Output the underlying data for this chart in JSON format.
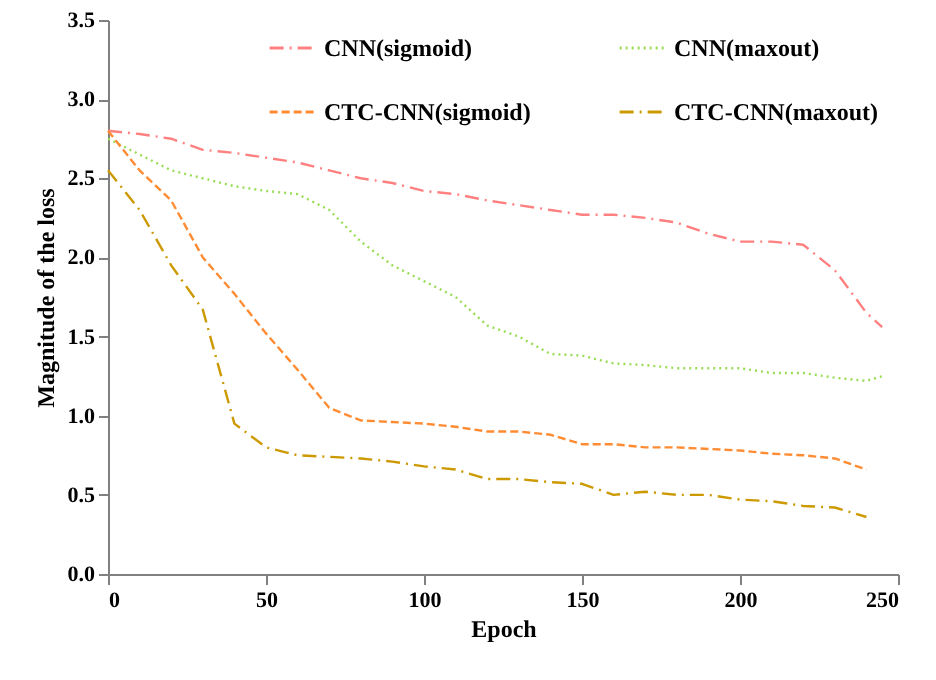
{
  "chart_data": {
    "type": "line",
    "xlabel": "Epoch",
    "ylabel": "Magnitude of the loss",
    "x": [
      0,
      10,
      20,
      30,
      40,
      50,
      60,
      70,
      80,
      90,
      100,
      110,
      120,
      130,
      140,
      150,
      160,
      170,
      180,
      190,
      200,
      210,
      220,
      230,
      240,
      245
    ],
    "series": [
      {
        "name": "CNN(sigmoid)",
        "color": "#ff8080",
        "line_style": "dashdot",
        "values": [
          2.8,
          2.78,
          2.75,
          2.68,
          2.66,
          2.63,
          2.6,
          2.55,
          2.5,
          2.47,
          2.42,
          2.4,
          2.36,
          2.33,
          2.3,
          2.27,
          2.27,
          2.25,
          2.22,
          2.15,
          2.1,
          2.1,
          2.08,
          1.92,
          1.65,
          1.56
        ]
      },
      {
        "name": "CNN(maxout)",
        "color": "#99dd55",
        "line_style": "dotted",
        "values": [
          2.75,
          2.65,
          2.55,
          2.5,
          2.45,
          2.42,
          2.4,
          2.3,
          2.1,
          1.95,
          1.85,
          1.75,
          1.57,
          1.5,
          1.39,
          1.38,
          1.33,
          1.32,
          1.3,
          1.3,
          1.3,
          1.27,
          1.27,
          1.24,
          1.22,
          1.25
        ]
      },
      {
        "name": "CTC-CNN(sigmoid)",
        "color": "#ff8c33",
        "line_style": "dashed",
        "values": [
          2.8,
          2.55,
          2.36,
          2.0,
          1.77,
          1.52,
          1.29,
          1.05,
          0.97,
          0.96,
          0.95,
          0.93,
          0.9,
          0.9,
          0.88,
          0.82,
          0.82,
          0.8,
          0.8,
          0.79,
          0.78,
          0.76,
          0.75,
          0.73,
          0.66,
          null
        ]
      },
      {
        "name": "CTC-CNN(maxout)",
        "color": "#cc9900",
        "line_style": "dashdot",
        "values": [
          2.55,
          2.3,
          1.95,
          1.67,
          0.95,
          0.8,
          0.75,
          0.74,
          0.73,
          0.71,
          0.68,
          0.66,
          0.6,
          0.6,
          0.58,
          0.57,
          0.5,
          0.52,
          0.5,
          0.5,
          0.47,
          0.46,
          0.43,
          0.42,
          0.36,
          null
        ]
      }
    ],
    "xlim": [
      0,
      250
    ],
    "xticks": [
      0,
      50,
      100,
      150,
      200,
      250
    ],
    "ylim": [
      0,
      3.5
    ],
    "yticks": [
      {
        "value": 0,
        "label": "0.0"
      },
      {
        "value": 0.5,
        "label": "0.5"
      },
      {
        "value": 1,
        "label": "1.0"
      },
      {
        "value": 1.5,
        "label": "1.5"
      },
      {
        "value": 2,
        "label": "2.0"
      },
      {
        "value": 2.5,
        "label": "2.5"
      },
      {
        "value": 3,
        "label": "3.0"
      },
      {
        "value": 3.5,
        "label": "3.5"
      }
    ],
    "grid": false,
    "legend": "top",
    "marker": "none"
  }
}
